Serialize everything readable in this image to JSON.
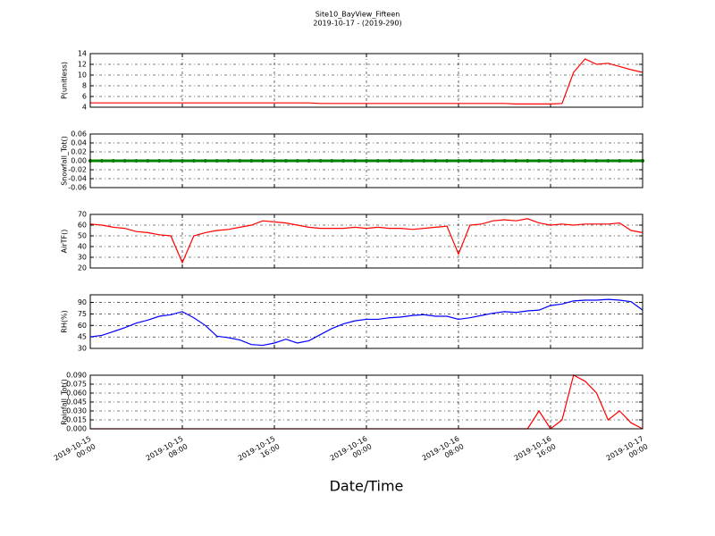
{
  "chart_data": {
    "type": "line",
    "title": "Site10_BayView_Fifteen",
    "subtitle": "2019-10-17 - (2019-290)",
    "xlabel": "Date/Time",
    "grid": true,
    "xlim": [
      "2019-10-15 00:00",
      "2019-10-17 00:00"
    ],
    "xticks": [
      "2019-10-15 00:00",
      "2019-10-15 08:00",
      "2019-10-15 16:00",
      "2019-10-16 00:00",
      "2019-10-16 08:00",
      "2019-10-16 16:00",
      "2019-10-17 00:00"
    ],
    "x": [
      "2019-10-15 00:00",
      "2019-10-15 01:00",
      "2019-10-15 02:00",
      "2019-10-15 03:00",
      "2019-10-15 04:00",
      "2019-10-15 05:00",
      "2019-10-15 06:00",
      "2019-10-15 07:00",
      "2019-10-15 08:00",
      "2019-10-15 09:00",
      "2019-10-15 10:00",
      "2019-10-15 11:00",
      "2019-10-15 12:00",
      "2019-10-15 13:00",
      "2019-10-15 14:00",
      "2019-10-15 15:00",
      "2019-10-15 16:00",
      "2019-10-15 17:00",
      "2019-10-15 18:00",
      "2019-10-15 19:00",
      "2019-10-15 20:00",
      "2019-10-15 21:00",
      "2019-10-15 22:00",
      "2019-10-15 23:00",
      "2019-10-16 00:00",
      "2019-10-16 01:00",
      "2019-10-16 02:00",
      "2019-10-16 03:00",
      "2019-10-16 04:00",
      "2019-10-16 05:00",
      "2019-10-16 06:00",
      "2019-10-16 07:00",
      "2019-10-16 08:00",
      "2019-10-16 09:00",
      "2019-10-16 10:00",
      "2019-10-16 11:00",
      "2019-10-16 12:00",
      "2019-10-16 13:00",
      "2019-10-16 14:00",
      "2019-10-16 15:00",
      "2019-10-16 16:00",
      "2019-10-16 17:00",
      "2019-10-16 18:00",
      "2019-10-16 19:00",
      "2019-10-16 20:00",
      "2019-10-16 21:00",
      "2019-10-16 22:00",
      "2019-10-16 23:00",
      "2019-10-17 00:00"
    ],
    "panels": [
      {
        "ylabel": "P(unitless)",
        "ylim": [
          4,
          14
        ],
        "yticks": [
          4,
          6,
          8,
          10,
          12,
          14
        ],
        "series": [
          {
            "color": "#ff0000",
            "values": [
              4.8,
              4.8,
              4.8,
              4.8,
              4.8,
              4.8,
              4.8,
              4.8,
              4.8,
              4.8,
              4.8,
              4.8,
              4.8,
              4.8,
              4.8,
              4.8,
              4.8,
              4.8,
              4.8,
              4.8,
              4.7,
              4.7,
              4.7,
              4.7,
              4.7,
              4.7,
              4.7,
              4.7,
              4.7,
              4.7,
              4.7,
              4.7,
              4.7,
              4.7,
              4.7,
              4.7,
              4.7,
              4.6,
              4.6,
              4.6,
              4.6,
              4.7,
              10.5,
              13.0,
              12.0,
              12.2,
              11.6,
              11.0,
              10.5
            ]
          }
        ]
      },
      {
        "ylabel": "Snowfall_Tot()",
        "ylim": [
          -0.06,
          0.06
        ],
        "yticks": [
          -0.06,
          -0.04,
          -0.02,
          {
            "value": 0,
            "label": "0.00"
          },
          0.02,
          0.04,
          0.06
        ],
        "series": [
          {
            "color": "#008000",
            "marker": true,
            "values": [
              0,
              0,
              0,
              0,
              0,
              0,
              0,
              0,
              0,
              0,
              0,
              0,
              0,
              0,
              0,
              0,
              0,
              0,
              0,
              0,
              0,
              0,
              0,
              0,
              0,
              0,
              0,
              0,
              0,
              0,
              0,
              0,
              0,
              0,
              0,
              0,
              0,
              0,
              0,
              0,
              0,
              0,
              0,
              0,
              0,
              0,
              0,
              0,
              0
            ]
          }
        ]
      },
      {
        "ylabel": "AirTF()",
        "ylim": [
          20,
          70
        ],
        "yticks": [
          20,
          30,
          40,
          50,
          60,
          70
        ],
        "series": [
          {
            "color": "#ff0000",
            "values": [
              61,
              60,
              58,
              57,
              54,
              53,
              51,
              50,
              25,
              50,
              53,
              55,
              56,
              58,
              60,
              64,
              63,
              62,
              60,
              58,
              57,
              57,
              57,
              58,
              57,
              58,
              57,
              57,
              56,
              57,
              58,
              59,
              33,
              60,
              61,
              64,
              65,
              64,
              66,
              62,
              60,
              61,
              60,
              61,
              61,
              61,
              62,
              55,
              53
            ]
          }
        ]
      },
      {
        "ylabel": "RH(%)",
        "ylim": [
          30,
          100
        ],
        "yticks": [
          30,
          45,
          60,
          75,
          90
        ],
        "series": [
          {
            "color": "#0000ff",
            "values": [
              45,
              47,
              52,
              57,
              63,
              67,
              72,
              74,
              78,
              70,
              60,
              46,
              44,
              41,
              35,
              34,
              37,
              42,
              37,
              40,
              48,
              56,
              62,
              66,
              68,
              68,
              70,
              71,
              73,
              74,
              72,
              72,
              68,
              70,
              73,
              76,
              78,
              77,
              79,
              80,
              86,
              88,
              92,
              93,
              93,
              94,
              93,
              91,
              80
            ]
          }
        ]
      },
      {
        "ylabel": "Rainfall_Tot()",
        "ylim": [
          0,
          0.09
        ],
        "yticks": [
          {
            "value": 0,
            "label": "0.000"
          },
          0.015,
          {
            "value": 0.03,
            "label": "0.030"
          },
          0.045,
          {
            "value": 0.06,
            "label": "0.060"
          },
          0.075,
          {
            "value": 0.09,
            "label": "0.090"
          }
        ],
        "series": [
          {
            "color": "#ff0000",
            "values": [
              0,
              0,
              0,
              0,
              0,
              0,
              0,
              0,
              0,
              0,
              0,
              0,
              0,
              0,
              0,
              0,
              0,
              0,
              0,
              0,
              0,
              0,
              0,
              0,
              0,
              0,
              0,
              0,
              0,
              0,
              0,
              0,
              0,
              0,
              0,
              0,
              0,
              0,
              0,
              0.03,
              0,
              0.015,
              0.09,
              0.08,
              0.06,
              0.015,
              0.03,
              0.01,
              0
            ]
          }
        ]
      }
    ]
  }
}
